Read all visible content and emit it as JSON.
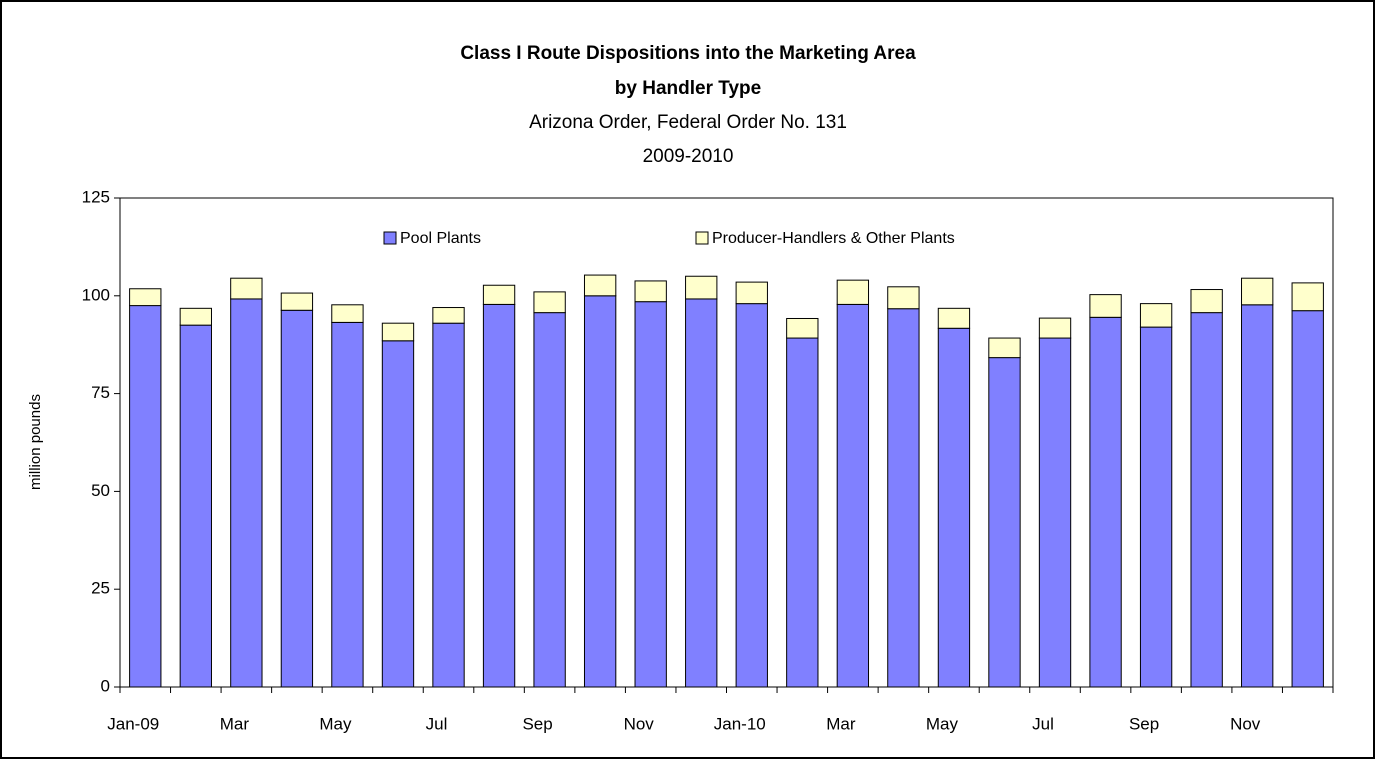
{
  "chart_data": {
    "type": "stacked_bar",
    "title": "Class I Route Dispositions into the Marketing Area",
    "title2": "by Handler Type",
    "subtitle": "Arizona Order, Federal Order No. 131",
    "subtitle2": "2009-2010",
    "y_label": "million pounds",
    "categories": [
      "Jan-09",
      null,
      "Mar",
      null,
      "May",
      null,
      "Jul",
      null,
      "Sep",
      null,
      "Nov",
      null,
      "Jan-10",
      null,
      "Mar",
      null,
      "May",
      null,
      "Jul",
      null,
      "Sep",
      null,
      "Nov",
      null
    ],
    "series": [
      {
        "name": "Pool Plants",
        "color": "#8080ff",
        "values": [
          97.5,
          92.5,
          99.2,
          96.3,
          93.2,
          88.5,
          93.0,
          97.8,
          95.7,
          100.0,
          98.5,
          99.2,
          98.0,
          89.2,
          97.8,
          96.7,
          91.7,
          84.2,
          89.2,
          94.5,
          92.0,
          95.7,
          97.7,
          96.2
        ]
      },
      {
        "name": "Producer-Handlers & Other Plants",
        "color": "#ffffcc",
        "values": [
          4.3,
          4.3,
          5.3,
          4.4,
          4.5,
          4.5,
          4.0,
          4.9,
          5.3,
          5.3,
          5.3,
          5.8,
          5.5,
          5.0,
          6.2,
          5.6,
          5.1,
          5.0,
          5.1,
          5.8,
          6.0,
          5.9,
          6.8,
          7.1
        ]
      }
    ],
    "ylim": [
      0,
      125
    ],
    "yticks": [
      0,
      25,
      50,
      75,
      100,
      125
    ],
    "grid": false,
    "legend": "top"
  }
}
